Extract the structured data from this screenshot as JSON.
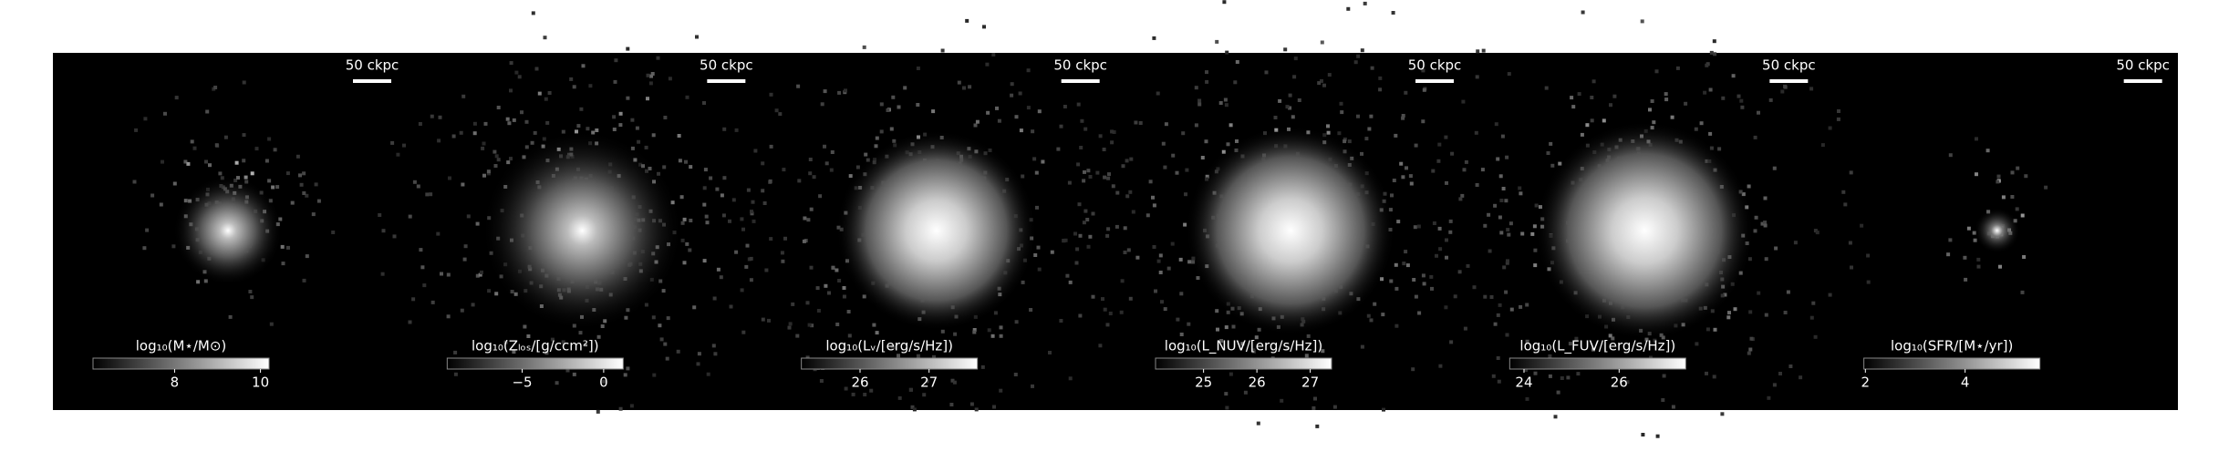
{
  "chart_data": [
    {
      "type": "image",
      "scale_label": "50 ckpc",
      "colorbar": {
        "label": "log₁₀(M⋆/M⊙)",
        "lim": [
          6.1,
          10.2
        ],
        "ticks": [
          8,
          10
        ]
      }
    },
    {
      "type": "image",
      "scale_label": "50 ckpc",
      "colorbar": {
        "label": "log₁₀(Zₗₒₛ/[g/ccm²])",
        "lim": [
          -9.6,
          1.2
        ],
        "ticks": [
          {
            "value": -5,
            "label": "−5"
          },
          0
        ]
      }
    },
    {
      "type": "image",
      "scale_label": "50 ckpc",
      "colorbar": {
        "label": "log₁₀(Lᵥ/[erg/s/Hz])",
        "lim": [
          25.15,
          27.7
        ],
        "ticks": [
          26,
          27
        ]
      }
    },
    {
      "type": "image",
      "scale_label": "50 ckpc",
      "colorbar": {
        "label": "log₁₀(L_NUV/[erg/s/Hz])",
        "lim": [
          24.1,
          27.4
        ],
        "ticks": [
          25,
          26,
          27
        ]
      }
    },
    {
      "type": "image",
      "scale_label": "50 ckpc",
      "colorbar": {
        "label": "log₁₀(L_FUV/[erg/s/Hz])",
        "lim": [
          23.7,
          27.4
        ],
        "ticks": [
          24,
          26
        ]
      }
    },
    {
      "type": "image",
      "scale_label": "50 ckpc",
      "colorbar": {
        "label": "log₁₀(SFR/[M⋆/yr])",
        "lim": [
          1.97,
          5.5
        ],
        "ticks": [
          2,
          4
        ]
      }
    }
  ]
}
